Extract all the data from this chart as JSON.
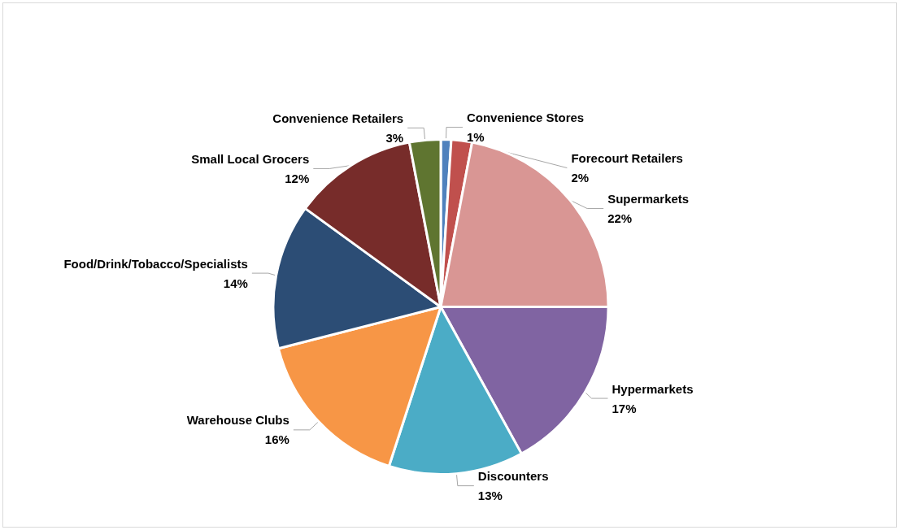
{
  "chart_data": {
    "type": "pie",
    "categories": [
      "Convenience Stores",
      "Forecourt Retailers",
      "Supermarkets",
      "Hypermarkets",
      "Discounters",
      "Warehouse Clubs",
      "Food/Drink/Tobacco/Specialists",
      "Small Local Grocers",
      "Convenience Retailers"
    ],
    "values": [
      1,
      2,
      22,
      17,
      13,
      16,
      14,
      12,
      3
    ],
    "colors": [
      "#4f81bd",
      "#c0504d",
      "#d99694",
      "#8064a2",
      "#4bacc6",
      "#f79646",
      "#2c4d75",
      "#772c2a",
      "#5f7530"
    ],
    "value_labels": [
      "1%",
      "2%",
      "22%",
      "17%",
      "13%",
      "16%",
      "14%",
      "12%",
      "3%"
    ],
    "legend": false
  }
}
